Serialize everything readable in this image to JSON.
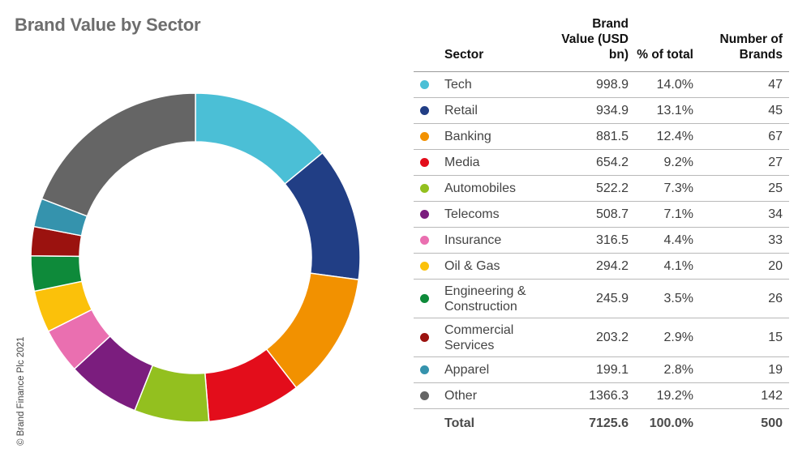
{
  "title": "Brand Value by Sector",
  "copyright": "© Brand Finance Plc 2021",
  "table": {
    "headers": {
      "sector": "Sector",
      "value": "Brand Value (USD bn)",
      "pct": "% of total",
      "brands": "Number of Brands"
    },
    "total": {
      "label": "Total",
      "value": "7125.6",
      "pct": "100.0%",
      "brands": "500"
    }
  },
  "chart_data": {
    "type": "pie",
    "style": "donut",
    "title": "Brand Value by Sector",
    "legend_placement": "table-right",
    "series": [
      {
        "name": "Tech",
        "value": 998.9,
        "pct": "14.0%",
        "brands": 47,
        "color": "#4bbfd6"
      },
      {
        "name": "Retail",
        "value": 934.9,
        "pct": "13.1%",
        "brands": 45,
        "color": "#213e85"
      },
      {
        "name": "Banking",
        "value": 881.5,
        "pct": "12.4%",
        "brands": 67,
        "color": "#f29100"
      },
      {
        "name": "Media",
        "value": 654.2,
        "pct": "9.2%",
        "brands": 27,
        "color": "#e30d1b"
      },
      {
        "name": "Automobiles",
        "value": 522.2,
        "pct": "7.3%",
        "brands": 25,
        "color": "#93c01f"
      },
      {
        "name": "Telecoms",
        "value": 508.7,
        "pct": "7.1%",
        "brands": 34,
        "color": "#7b1d7e"
      },
      {
        "name": "Insurance",
        "value": 316.5,
        "pct": "4.4%",
        "brands": 33,
        "color": "#ea6fb0"
      },
      {
        "name": "Oil & Gas",
        "value": 294.2,
        "pct": "4.1%",
        "brands": 20,
        "color": "#fbc10a"
      },
      {
        "name": "Engineering & Construction",
        "value": 245.9,
        "pct": "3.5%",
        "brands": 26,
        "color": "#0e8a3a"
      },
      {
        "name": "Commercial Services",
        "value": 203.2,
        "pct": "2.9%",
        "brands": 15,
        "color": "#9b120f"
      },
      {
        "name": "Apparel",
        "value": 199.1,
        "pct": "2.8%",
        "brands": 19,
        "color": "#3593ad"
      },
      {
        "name": "Other",
        "value": 1366.3,
        "pct": "19.2%",
        "brands": 142,
        "color": "#656565"
      }
    ]
  }
}
